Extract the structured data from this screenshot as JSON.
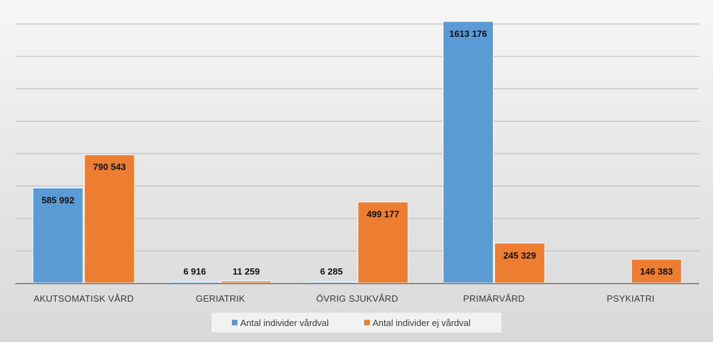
{
  "chart_data": {
    "type": "bar",
    "title": "",
    "xlabel": "",
    "ylabel": "",
    "categories": [
      "AKUTSOMATISK VÅRD",
      "GERIATRIK",
      "ÖVRIG SJUKVÅRD",
      "PRIMÄRVÅRD",
      "PSYKIATRI"
    ],
    "series": [
      {
        "name": "Antal individer vårdval",
        "color": "#5b9bd5",
        "values": [
          585992,
          6916,
          6285,
          1613176,
          null
        ],
        "labels": [
          "585 992",
          "6 916",
          "6 285",
          "1613 176",
          ""
        ]
      },
      {
        "name": "Antal individer ej vårdval",
        "color": "#ed7d31",
        "values": [
          790543,
          11259,
          499177,
          245329,
          146383
        ],
        "labels": [
          "790 543",
          "11 259",
          "499 177",
          "245 329",
          "146 383"
        ]
      }
    ],
    "ylim": [
      0,
      1600000
    ],
    "grid": true,
    "legend_position": "bottom"
  }
}
